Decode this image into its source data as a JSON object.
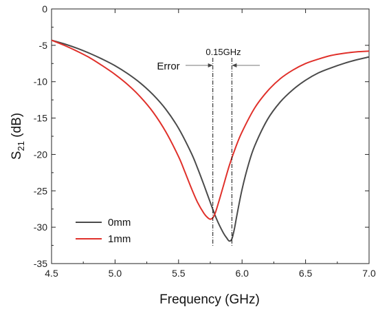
{
  "chart_data": {
    "type": "line",
    "xlabel": "Frequency (GHz)",
    "ylabel_main": "S",
    "ylabel_sub": "21",
    "ylabel_unit": " (dB)",
    "xlim": [
      4.5,
      7.0
    ],
    "ylim": [
      -35,
      0
    ],
    "xticks": [
      4.5,
      5.0,
      5.5,
      6.0,
      6.5,
      7.0
    ],
    "xtick_labels": [
      "4.5",
      "5.0",
      "5.5",
      "6.0",
      "6.5",
      "7.0"
    ],
    "yticks": [
      0,
      -5,
      -10,
      -15,
      -20,
      -25,
      -30,
      -35
    ],
    "ytick_labels": [
      "0",
      "-5",
      "-10",
      "-15",
      "-20",
      "-25",
      "-30",
      "-35"
    ],
    "grid": false,
    "legend_position": "bottom-left",
    "series": [
      {
        "name": "0mm",
        "color": "#4a4a4a",
        "x": [
          4.5,
          4.6,
          4.7,
          4.8,
          4.9,
          5.0,
          5.1,
          5.2,
          5.3,
          5.4,
          5.5,
          5.6,
          5.65,
          5.7,
          5.75,
          5.8,
          5.85,
          5.88,
          5.9,
          5.92,
          5.94,
          5.96,
          6.0,
          6.05,
          6.1,
          6.2,
          6.3,
          6.4,
          6.5,
          6.6,
          6.7,
          6.8,
          6.9,
          7.0
        ],
        "y": [
          -4.3,
          -4.8,
          -5.4,
          -6.1,
          -6.9,
          -7.8,
          -8.9,
          -10.2,
          -11.8,
          -13.8,
          -16.4,
          -19.8,
          -21.9,
          -24.2,
          -26.6,
          -28.9,
          -30.7,
          -31.5,
          -31.9,
          -31.6,
          -30.2,
          -28.3,
          -24.8,
          -21.4,
          -18.8,
          -15.2,
          -12.8,
          -11.1,
          -9.8,
          -8.8,
          -8.1,
          -7.5,
          -7.0,
          -6.6
        ]
      },
      {
        "name": "1mm",
        "color": "#e0302a",
        "x": [
          4.5,
          4.6,
          4.7,
          4.8,
          4.9,
          5.0,
          5.1,
          5.2,
          5.3,
          5.4,
          5.5,
          5.55,
          5.6,
          5.65,
          5.7,
          5.73,
          5.75,
          5.77,
          5.79,
          5.82,
          5.85,
          5.9,
          5.95,
          6.0,
          6.1,
          6.2,
          6.3,
          6.4,
          6.5,
          6.6,
          6.7,
          6.8,
          6.9,
          7.0
        ],
        "y": [
          -4.3,
          -5.0,
          -5.8,
          -6.7,
          -7.8,
          -9.0,
          -10.4,
          -12.1,
          -14.2,
          -16.9,
          -20.3,
          -22.4,
          -24.6,
          -26.6,
          -28.1,
          -28.7,
          -28.9,
          -28.7,
          -28.0,
          -26.3,
          -24.5,
          -21.5,
          -19.0,
          -16.9,
          -13.6,
          -11.3,
          -9.6,
          -8.4,
          -7.5,
          -6.9,
          -6.4,
          -6.1,
          -5.9,
          -5.8
        ]
      }
    ],
    "annotations": {
      "error_label": "Error",
      "delta_label": "0.15GHz",
      "vline_left_x": 5.77,
      "vline_right_x": 5.92
    }
  }
}
